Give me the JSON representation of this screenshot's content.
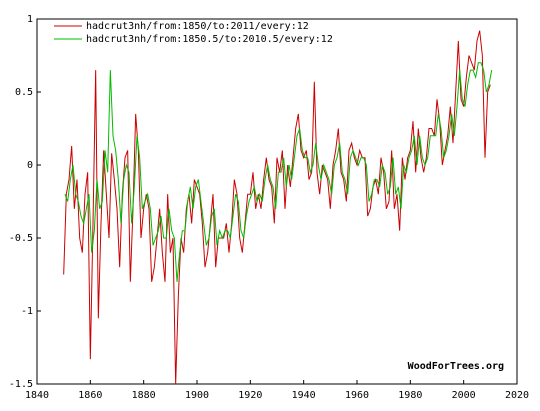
{
  "chart_data": {
    "type": "line",
    "watermark": "WoodForTrees.org",
    "xlim": [
      1840,
      2020
    ],
    "xticks": [
      1840,
      1860,
      1880,
      1900,
      1920,
      1940,
      1960,
      1980,
      2000,
      2020
    ],
    "ylim": [
      -1.5,
      1
    ],
    "yticks": [
      -1.5,
      -1,
      -0.5,
      0,
      0.5,
      1
    ],
    "legend": "top-left",
    "series": [
      {
        "name": "hadcrut3nh/from:1850/to:2011/every:12",
        "color": "#cc0000",
        "x": [
          1850,
          1851,
          1852,
          1853,
          1854,
          1855,
          1856,
          1857,
          1858,
          1859,
          1860,
          1861,
          1862,
          1863,
          1864,
          1865,
          1866,
          1867,
          1868,
          1869,
          1870,
          1871,
          1872,
          1873,
          1874,
          1875,
          1876,
          1877,
          1878,
          1879,
          1880,
          1881,
          1882,
          1883,
          1884,
          1885,
          1886,
          1887,
          1888,
          1889,
          1890,
          1891,
          1892,
          1893,
          1894,
          1895,
          1896,
          1897,
          1898,
          1899,
          1900,
          1901,
          1902,
          1903,
          1904,
          1905,
          1906,
          1907,
          1908,
          1909,
          1910,
          1911,
          1912,
          1913,
          1914,
          1915,
          1916,
          1917,
          1918,
          1919,
          1920,
          1921,
          1922,
          1923,
          1924,
          1925,
          1926,
          1927,
          1928,
          1929,
          1930,
          1931,
          1932,
          1933,
          1934,
          1935,
          1936,
          1937,
          1938,
          1939,
          1940,
          1941,
          1942,
          1943,
          1944,
          1945,
          1946,
          1947,
          1948,
          1949,
          1950,
          1951,
          1952,
          1953,
          1954,
          1955,
          1956,
          1957,
          1958,
          1959,
          1960,
          1961,
          1962,
          1963,
          1964,
          1965,
          1966,
          1967,
          1968,
          1969,
          1970,
          1971,
          1972,
          1973,
          1974,
          1975,
          1976,
          1977,
          1978,
          1979,
          1980,
          1981,
          1982,
          1983,
          1984,
          1985,
          1986,
          1987,
          1988,
          1989,
          1990,
          1991,
          1992,
          1993,
          1994,
          1995,
          1996,
          1997,
          1998,
          1999,
          2000,
          2001,
          2002,
          2003,
          2004,
          2005,
          2006,
          2007,
          2008,
          2009,
          2010
        ],
        "values": [
          -0.75,
          -0.2,
          -0.1,
          0.13,
          -0.3,
          -0.1,
          -0.5,
          -0.6,
          -0.2,
          -0.05,
          -1.33,
          -0.4,
          0.65,
          -1.05,
          -0.4,
          0.1,
          -0.2,
          -0.5,
          0.08,
          -0.1,
          -0.3,
          -0.7,
          -0.2,
          0.05,
          0.1,
          -0.8,
          -0.3,
          0.35,
          0.1,
          -0.5,
          -0.3,
          -0.2,
          -0.3,
          -0.8,
          -0.7,
          -0.5,
          -0.3,
          -0.6,
          -0.8,
          -0.2,
          -0.6,
          -0.5,
          -1.5,
          -0.9,
          -0.5,
          -0.6,
          -0.3,
          -0.2,
          -0.4,
          -0.1,
          -0.15,
          -0.2,
          -0.4,
          -0.7,
          -0.6,
          -0.4,
          -0.2,
          -0.7,
          -0.5,
          -0.5,
          -0.5,
          -0.4,
          -0.6,
          -0.4,
          -0.1,
          -0.2,
          -0.5,
          -0.6,
          -0.4,
          -0.2,
          -0.2,
          -0.05,
          -0.3,
          -0.2,
          -0.3,
          -0.1,
          0.05,
          -0.1,
          -0.15,
          -0.4,
          0.05,
          -0.05,
          0.1,
          -0.3,
          0.0,
          -0.15,
          0.05,
          0.25,
          0.35,
          0.1,
          0.05,
          0.1,
          -0.1,
          -0.05,
          0.57,
          -0.05,
          -0.2,
          0.0,
          -0.05,
          -0.1,
          -0.3,
          0.0,
          0.1,
          0.25,
          -0.05,
          -0.1,
          -0.25,
          0.1,
          0.15,
          0.05,
          0.0,
          0.1,
          0.05,
          0.05,
          -0.35,
          -0.3,
          -0.15,
          -0.1,
          -0.2,
          0.05,
          -0.05,
          -0.3,
          -0.25,
          0.1,
          -0.3,
          -0.2,
          -0.45,
          0.05,
          -0.1,
          0.05,
          0.1,
          0.3,
          -0.05,
          0.25,
          0.05,
          -0.05,
          0.05,
          0.25,
          0.25,
          0.2,
          0.45,
          0.3,
          0.0,
          0.1,
          0.2,
          0.4,
          0.15,
          0.5,
          0.85,
          0.45,
          0.4,
          0.6,
          0.75,
          0.7,
          0.65,
          0.85,
          0.92,
          0.75,
          0.05,
          0.5,
          0.55
        ]
      },
      {
        "name": "hadcrut3nh/from:1850.5/to:2010.5/every:12",
        "color": "#00bb00",
        "x": [
          1850.5,
          1851.5,
          1852.5,
          1853.5,
          1854.5,
          1855.5,
          1856.5,
          1857.5,
          1858.5,
          1859.5,
          1860.5,
          1861.5,
          1862.5,
          1863.5,
          1864.5,
          1865.5,
          1866.5,
          1867.5,
          1868.5,
          1869.5,
          1870.5,
          1871.5,
          1872.5,
          1873.5,
          1874.5,
          1875.5,
          1876.5,
          1877.5,
          1878.5,
          1879.5,
          1880.5,
          1881.5,
          1882.5,
          1883.5,
          1884.5,
          1885.5,
          1886.5,
          1887.5,
          1888.5,
          1889.5,
          1890.5,
          1891.5,
          1892.5,
          1893.5,
          1894.5,
          1895.5,
          1896.5,
          1897.5,
          1898.5,
          1899.5,
          1900.5,
          1901.5,
          1902.5,
          1903.5,
          1904.5,
          1905.5,
          1906.5,
          1907.5,
          1908.5,
          1909.5,
          1910.5,
          1911.5,
          1912.5,
          1913.5,
          1914.5,
          1915.5,
          1916.5,
          1917.5,
          1918.5,
          1919.5,
          1920.5,
          1921.5,
          1922.5,
          1923.5,
          1924.5,
          1925.5,
          1926.5,
          1927.5,
          1928.5,
          1929.5,
          1930.5,
          1931.5,
          1932.5,
          1933.5,
          1934.5,
          1935.5,
          1936.5,
          1937.5,
          1938.5,
          1939.5,
          1940.5,
          1941.5,
          1942.5,
          1943.5,
          1944.5,
          1945.5,
          1946.5,
          1947.5,
          1948.5,
          1949.5,
          1950.5,
          1951.5,
          1952.5,
          1953.5,
          1954.5,
          1955.5,
          1956.5,
          1957.5,
          1958.5,
          1959.5,
          1960.5,
          1961.5,
          1962.5,
          1963.5,
          1964.5,
          1965.5,
          1966.5,
          1967.5,
          1968.5,
          1969.5,
          1970.5,
          1971.5,
          1972.5,
          1973.5,
          1974.5,
          1975.5,
          1976.5,
          1977.5,
          1978.5,
          1979.5,
          1980.5,
          1981.5,
          1982.5,
          1983.5,
          1984.5,
          1985.5,
          1986.5,
          1987.5,
          1988.5,
          1989.5,
          1990.5,
          1991.5,
          1992.5,
          1993.5,
          1994.5,
          1995.5,
          1996.5,
          1997.5,
          1998.5,
          1999.5,
          2000.5,
          2001.5,
          2002.5,
          2003.5,
          2004.5,
          2005.5,
          2006.5,
          2007.5,
          2008.5,
          2009.5,
          2010.5
        ],
        "values": [
          -0.2,
          -0.25,
          -0.1,
          0.0,
          -0.2,
          -0.25,
          -0.35,
          -0.4,
          -0.3,
          -0.2,
          -0.6,
          -0.45,
          -0.1,
          -0.3,
          -0.25,
          0.1,
          -0.05,
          0.65,
          0.2,
          0.1,
          -0.1,
          -0.4,
          -0.1,
          0.0,
          -0.05,
          -0.4,
          -0.15,
          0.2,
          0.05,
          -0.3,
          -0.25,
          -0.2,
          -0.3,
          -0.55,
          -0.5,
          -0.45,
          -0.35,
          -0.5,
          -0.5,
          -0.3,
          -0.45,
          -0.5,
          -0.8,
          -0.6,
          -0.45,
          -0.45,
          -0.25,
          -0.15,
          -0.3,
          -0.15,
          -0.1,
          -0.25,
          -0.4,
          -0.55,
          -0.5,
          -0.35,
          -0.3,
          -0.55,
          -0.45,
          -0.5,
          -0.45,
          -0.45,
          -0.5,
          -0.35,
          -0.2,
          -0.25,
          -0.45,
          -0.5,
          -0.35,
          -0.25,
          -0.2,
          -0.15,
          -0.25,
          -0.2,
          -0.25,
          -0.1,
          0.0,
          -0.1,
          -0.15,
          -0.3,
          -0.05,
          -0.05,
          0.05,
          -0.15,
          0.0,
          -0.1,
          0.05,
          0.2,
          0.25,
          0.1,
          0.05,
          0.05,
          -0.05,
          0.0,
          0.15,
          0.0,
          -0.1,
          0.0,
          -0.05,
          -0.1,
          -0.2,
          0.0,
          0.05,
          0.15,
          -0.05,
          -0.1,
          -0.2,
          0.05,
          0.1,
          0.05,
          0.0,
          0.05,
          0.05,
          0.0,
          -0.25,
          -0.2,
          -0.1,
          -0.1,
          -0.15,
          0.0,
          -0.05,
          -0.2,
          -0.15,
          0.05,
          -0.2,
          -0.15,
          -0.3,
          0.0,
          -0.05,
          0.05,
          0.1,
          0.2,
          0.0,
          0.2,
          0.05,
          0.0,
          0.05,
          0.2,
          0.2,
          0.2,
          0.35,
          0.25,
          0.05,
          0.1,
          0.2,
          0.35,
          0.2,
          0.4,
          0.65,
          0.45,
          0.4,
          0.55,
          0.65,
          0.65,
          0.6,
          0.7,
          0.7,
          0.65,
          0.5,
          0.55,
          0.65
        ]
      }
    ]
  }
}
